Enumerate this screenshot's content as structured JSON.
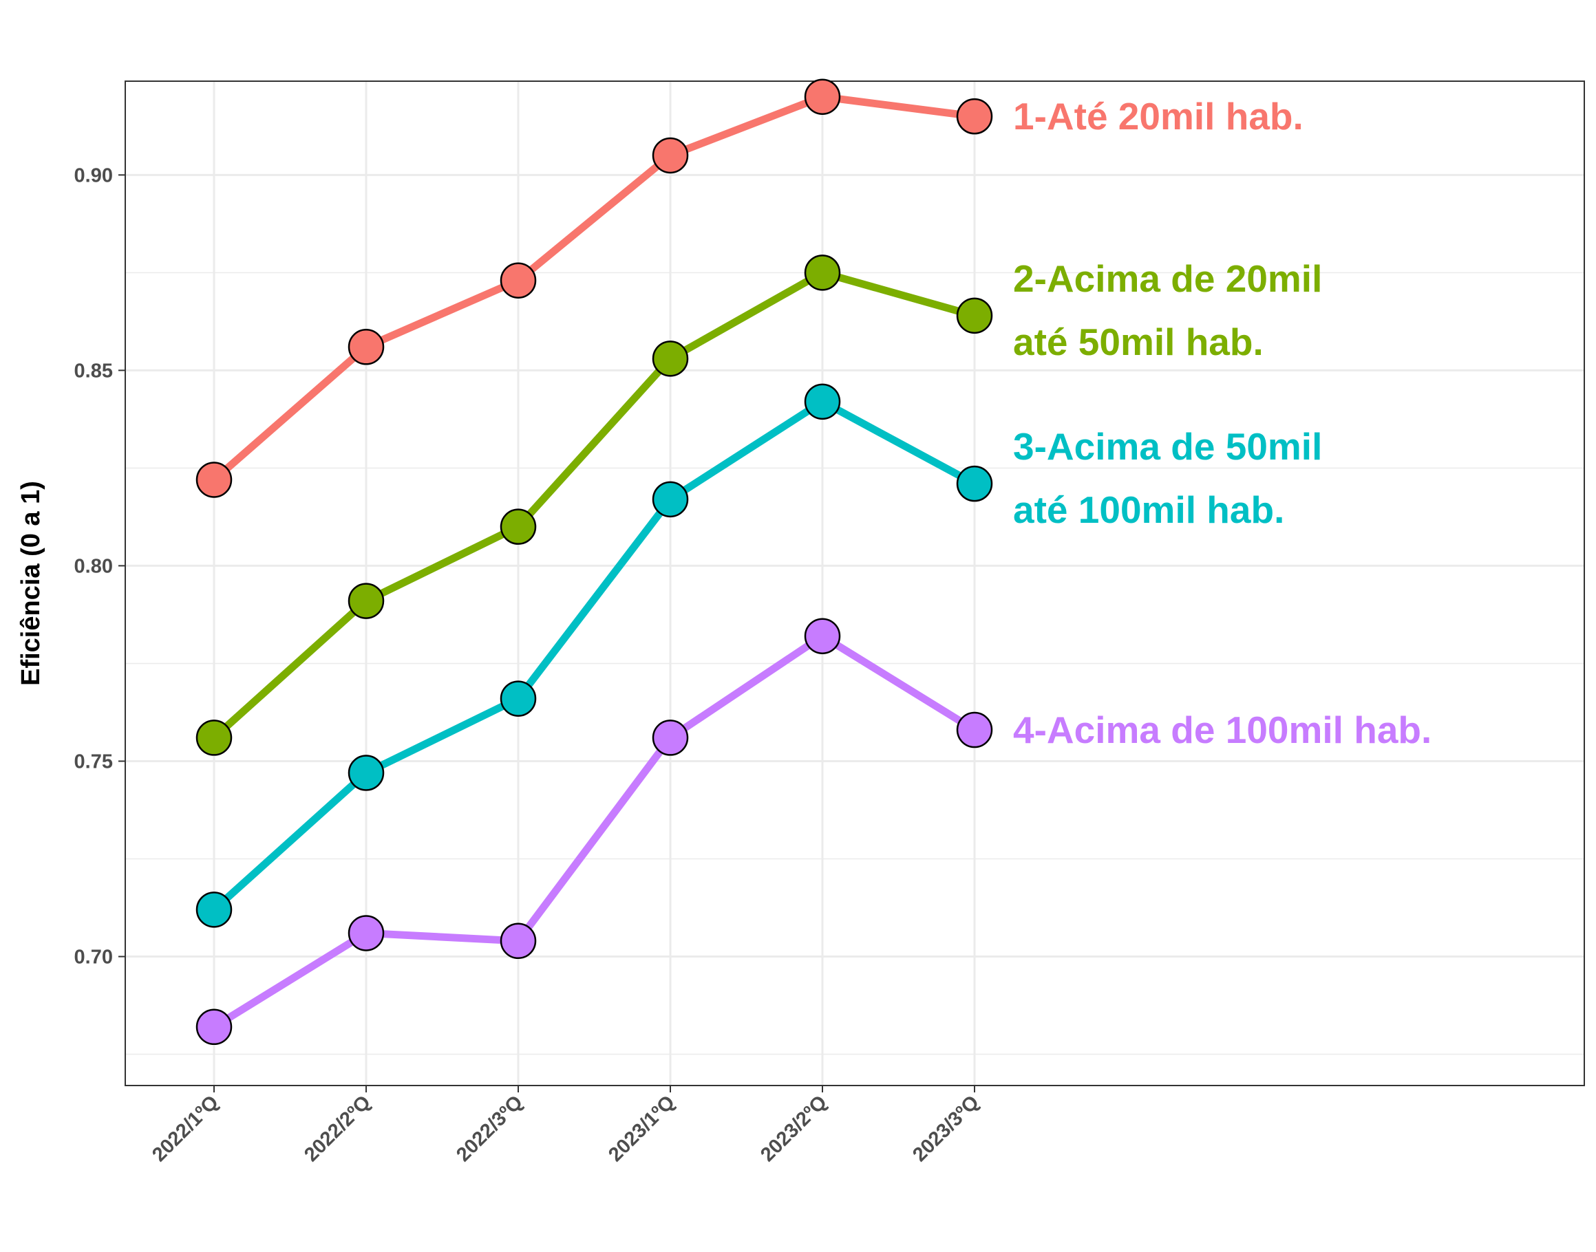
{
  "chart_data": {
    "type": "line",
    "title": "",
    "xlabel": "",
    "ylabel": "Eficiência (0 a 1)",
    "categories": [
      "2022/1ºQ",
      "2022/2ºQ",
      "2022/3ºQ",
      "2023/1ºQ",
      "2023/2ºQ",
      "2023/3ºQ"
    ],
    "ylim": [
      0.667,
      0.924
    ],
    "yticks": [
      0.7,
      0.75,
      0.8,
      0.85,
      0.9
    ],
    "ytick_labels": [
      "0.70",
      "0.75",
      "0.80",
      "0.85",
      "0.90"
    ],
    "grid": true,
    "legend": "direct labels at right of last point",
    "series": [
      {
        "name": "1-Até 20mil hab.",
        "label_lines": [
          "1-Até 20mil hab."
        ],
        "color": "#F8766D",
        "values": [
          0.822,
          0.856,
          0.873,
          0.905,
          0.92,
          0.915
        ]
      },
      {
        "name": "2-Acima de 20mil até 50mil hab.",
        "label_lines": [
          "2-Acima de 20mil",
          "até 50mil hab."
        ],
        "color": "#7CAE00",
        "values": [
          0.756,
          0.791,
          0.81,
          0.853,
          0.875,
          0.864
        ]
      },
      {
        "name": "3-Acima de 50mil até 100mil hab.",
        "label_lines": [
          "3-Acima de 50mil",
          "até 100mil hab."
        ],
        "color": "#00BFC4",
        "values": [
          0.712,
          0.747,
          0.766,
          0.817,
          0.842,
          0.821
        ]
      },
      {
        "name": "4-Acima de 100mil hab.",
        "label_lines": [
          "4-Acima de 100mil hab."
        ],
        "color": "#C77CFF",
        "values": [
          0.682,
          0.706,
          0.704,
          0.756,
          0.782,
          0.758
        ]
      }
    ]
  }
}
